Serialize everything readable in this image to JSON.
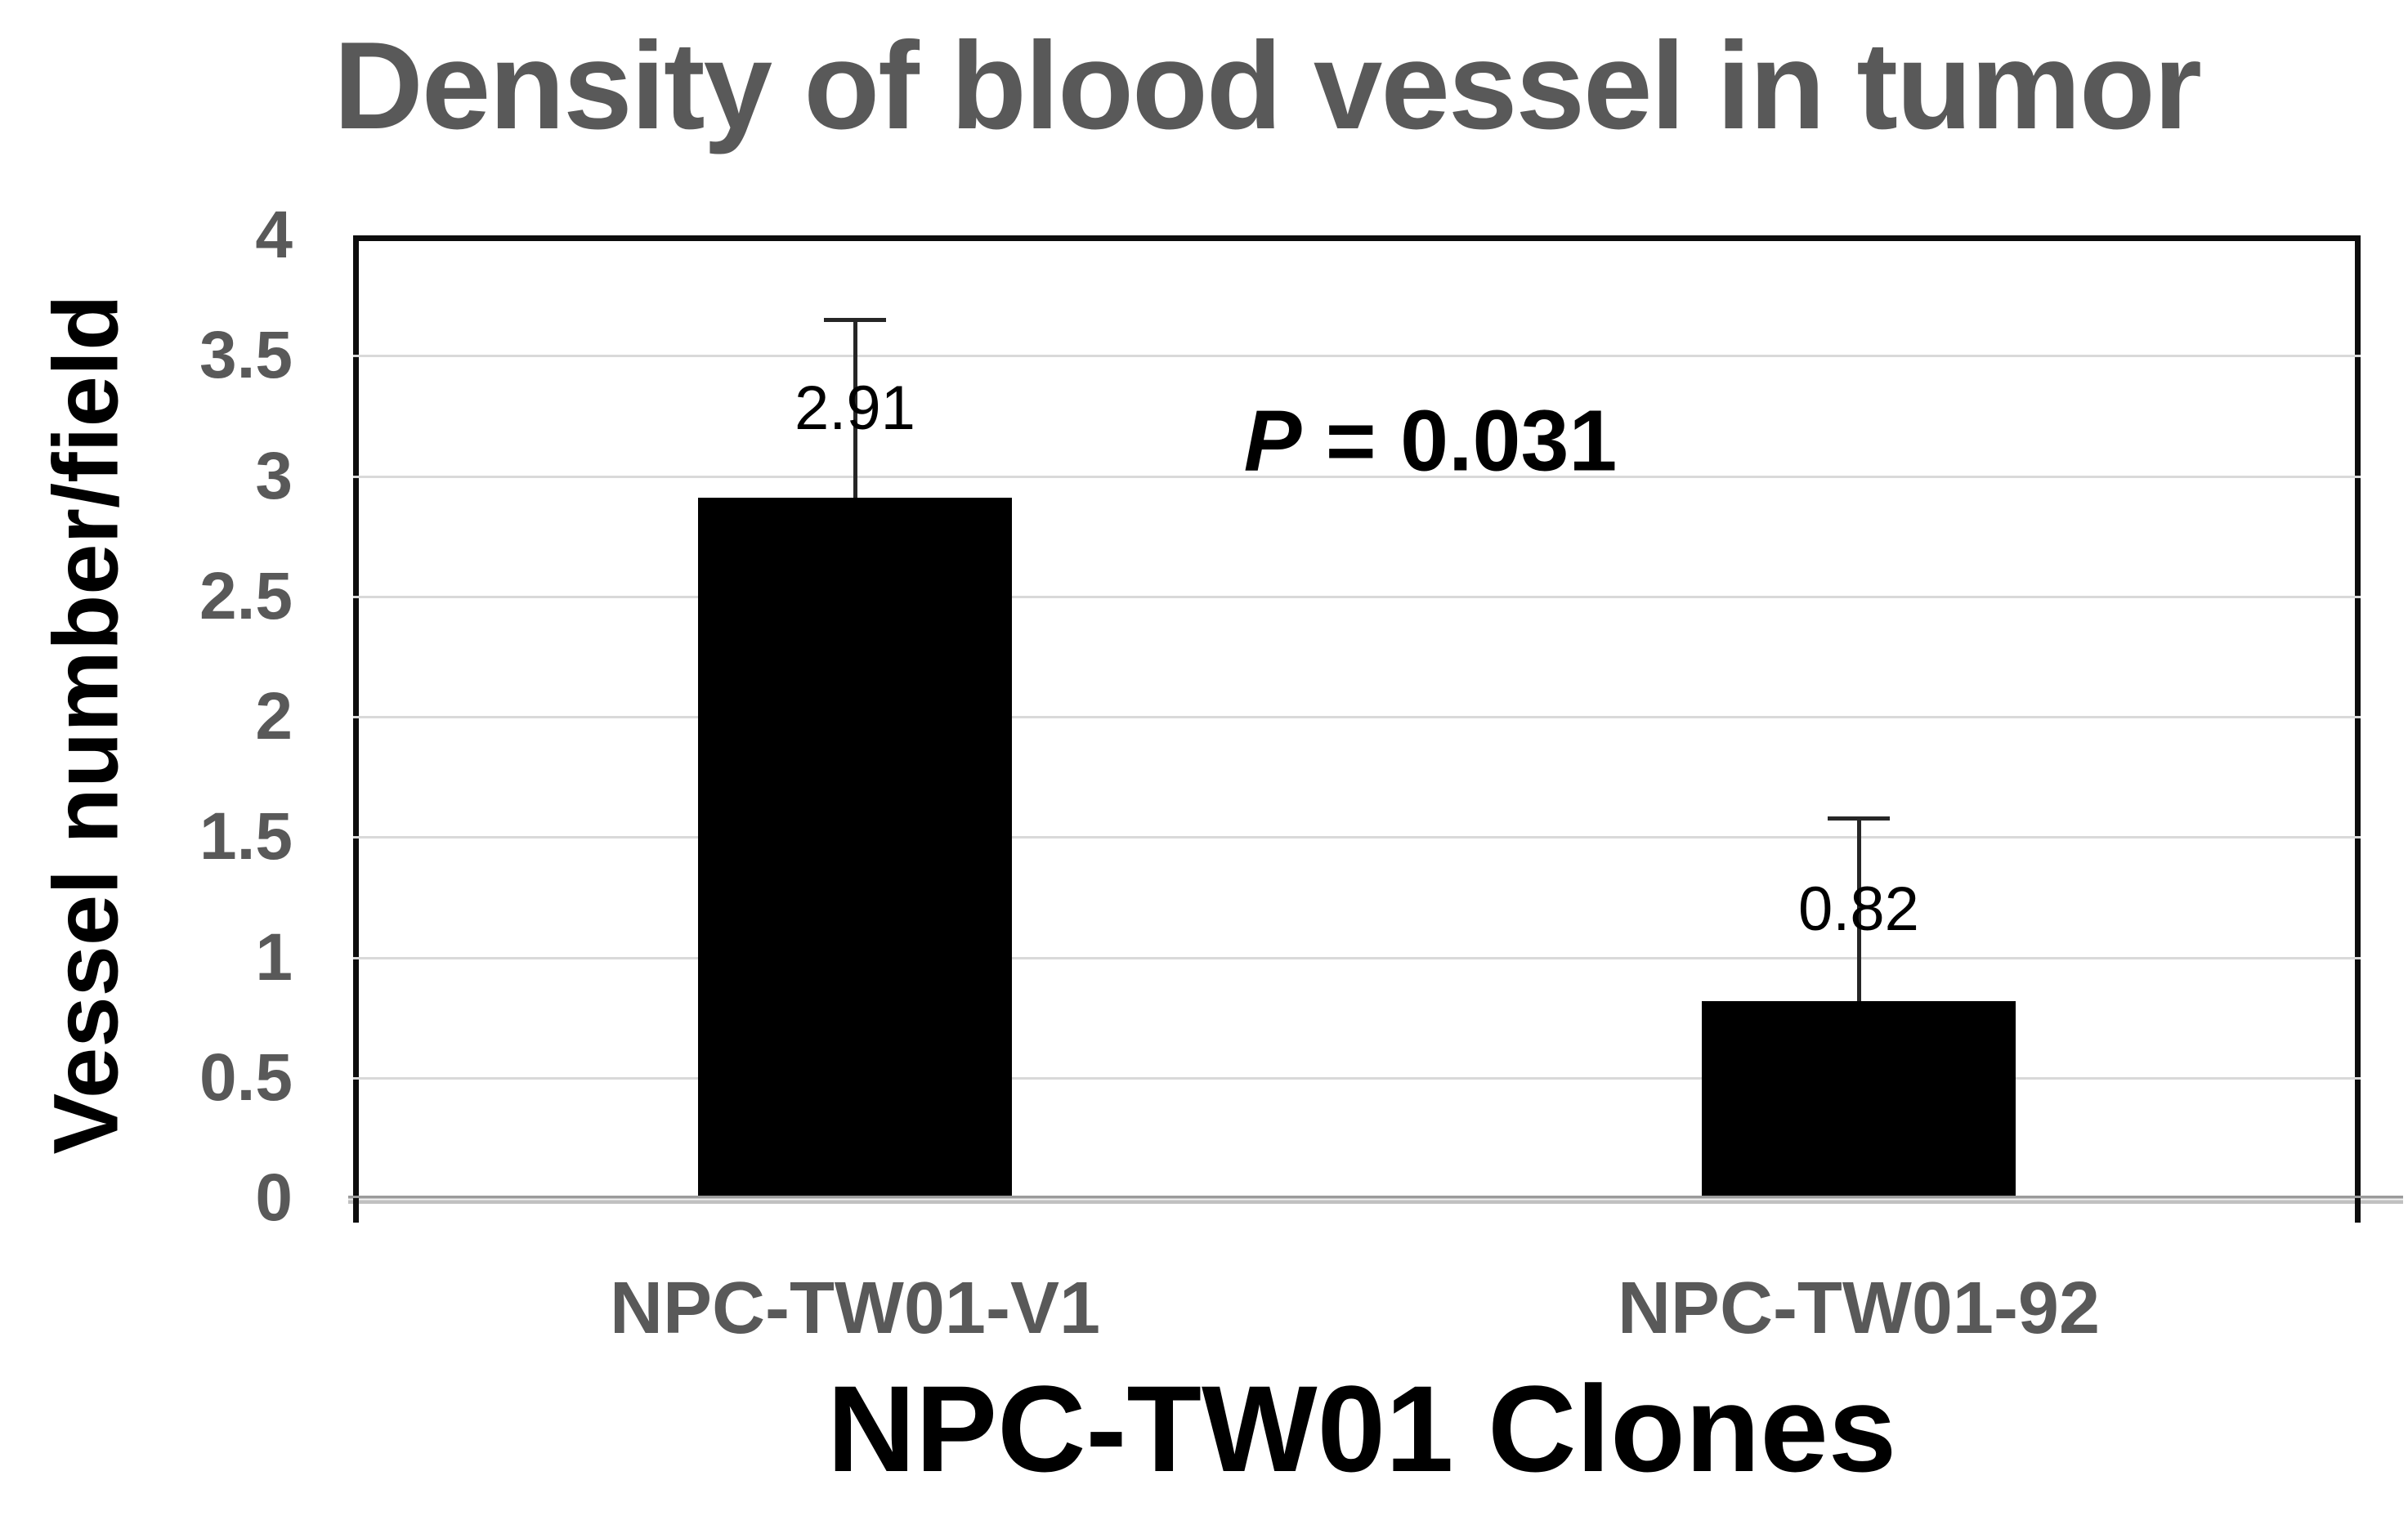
{
  "chart_data": {
    "type": "bar",
    "title": "Density of blood vessel in tumor",
    "xlabel": "NPC-TW01 Clones",
    "ylabel": "Vessel number/field",
    "categories": [
      "NPC-TW01-V1",
      "NPC-TW01-92"
    ],
    "values": [
      2.91,
      0.82
    ],
    "error_plus": [
      0.74,
      0.76
    ],
    "data_labels": [
      "2.91",
      "0.82"
    ],
    "annotation": {
      "italic_part": "P",
      "text_part": "= 0.031",
      "full": "P = 0.031"
    },
    "ylim": [
      0,
      4
    ],
    "ytick_values": [
      4,
      3.5,
      3,
      2.5,
      2,
      1.5,
      1,
      0.5,
      0
    ],
    "ytick_labels": [
      "4",
      "3.5",
      "3",
      "2.5",
      "2",
      "1.5",
      "1",
      "0.5",
      "0"
    ],
    "grid": true,
    "legend_position": "none",
    "colors": {
      "bar": "#000000",
      "title": "#595959",
      "tick_labels": "#595959",
      "axis_titles": "#000000",
      "gridline": "#d9d9d9",
      "axis_line": "#a6a6a6",
      "error_bar": "#262626",
      "frame": "#0d0d0d"
    }
  }
}
